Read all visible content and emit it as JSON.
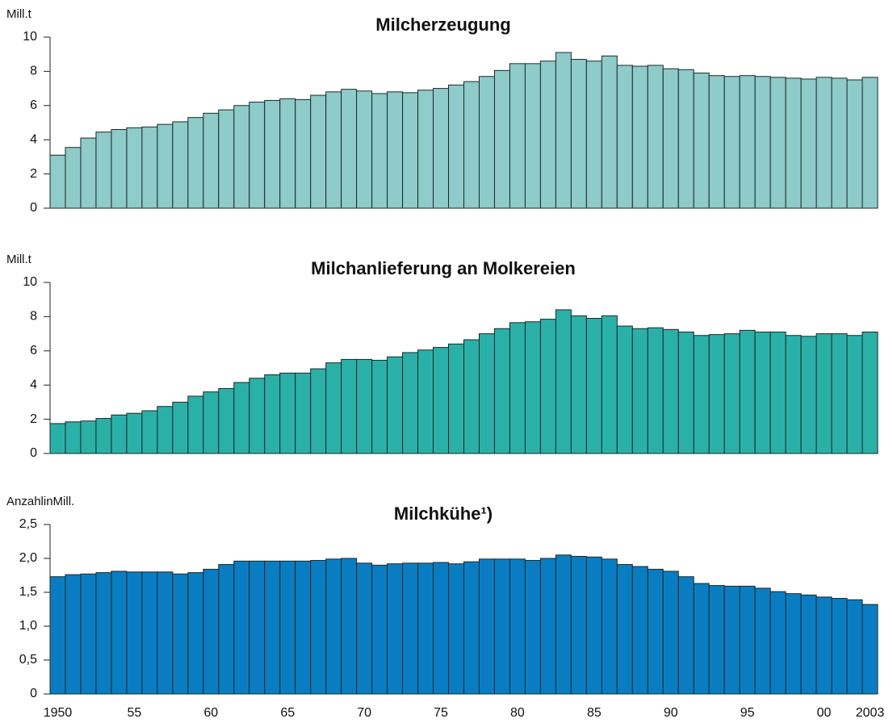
{
  "chart_data": [
    {
      "type": "bar",
      "title": "Milcherzeugung",
      "y_label": "Mill.t",
      "color": "#8ecbc9",
      "ylim": [
        0,
        10
      ],
      "yticks": [
        0,
        2,
        4,
        6,
        8,
        10
      ],
      "values": [
        3.1,
        3.55,
        4.1,
        4.45,
        4.6,
        4.7,
        4.75,
        4.9,
        5.05,
        5.3,
        5.55,
        5.75,
        6.0,
        6.2,
        6.3,
        6.4,
        6.35,
        6.6,
        6.8,
        6.95,
        6.85,
        6.7,
        6.8,
        6.75,
        6.9,
        7.0,
        7.2,
        7.4,
        7.7,
        8.05,
        8.45,
        8.45,
        8.6,
        9.1,
        8.7,
        8.6,
        8.9,
        8.35,
        8.3,
        8.35,
        8.15,
        8.1,
        7.9,
        7.75,
        7.7,
        7.75,
        7.7,
        7.65,
        7.6,
        7.55,
        7.65,
        7.6,
        7.5,
        7.65
      ]
    },
    {
      "type": "bar",
      "title": "Milchanlieferung an Molkereien",
      "y_label": "Mill.t",
      "color": "#2bb0a8",
      "ylim": [
        0,
        10
      ],
      "yticks": [
        0,
        2,
        4,
        6,
        8,
        10
      ],
      "values": [
        1.75,
        1.85,
        1.9,
        2.05,
        2.25,
        2.35,
        2.5,
        2.75,
        3.0,
        3.35,
        3.6,
        3.8,
        4.15,
        4.4,
        4.6,
        4.7,
        4.7,
        4.95,
        5.3,
        5.5,
        5.5,
        5.45,
        5.65,
        5.9,
        6.05,
        6.2,
        6.4,
        6.65,
        7.0,
        7.3,
        7.65,
        7.7,
        7.85,
        8.4,
        8.05,
        7.9,
        8.05,
        7.45,
        7.3,
        7.35,
        7.25,
        7.1,
        6.9,
        6.95,
        7.0,
        7.2,
        7.1,
        7.1,
        6.9,
        6.85,
        7.0,
        7.0,
        6.9,
        7.1
      ]
    },
    {
      "type": "bar",
      "title": "Milchkühe¹)",
      "y_label": "AnzahlinMill.",
      "color": "#0a7dc2",
      "ylim": [
        0,
        2.5
      ],
      "yticks": [
        0,
        {
          "value": 0.5,
          "label": "0,5"
        },
        {
          "value": 1,
          "label": "1,0"
        },
        {
          "value": 1.5,
          "label": "1,5"
        },
        {
          "value": 2,
          "label": "2,0"
        },
        {
          "value": 2.5,
          "label": "2,5"
        }
      ],
      "categories": [
        "1950",
        null,
        null,
        null,
        null,
        "55",
        null,
        null,
        null,
        null,
        "60",
        null,
        null,
        null,
        null,
        "65",
        null,
        null,
        null,
        null,
        "70",
        null,
        null,
        null,
        null,
        "75",
        null,
        null,
        null,
        null,
        "80",
        null,
        null,
        null,
        null,
        "85",
        null,
        null,
        null,
        null,
        "90",
        null,
        null,
        null,
        null,
        "95",
        null,
        null,
        null,
        null,
        "00",
        null,
        null,
        "2003"
      ],
      "values": [
        1.73,
        1.76,
        1.77,
        1.79,
        1.81,
        1.8,
        1.8,
        1.8,
        1.77,
        1.79,
        1.84,
        1.91,
        1.96,
        1.96,
        1.96,
        1.96,
        1.96,
        1.97,
        1.99,
        2.0,
        1.93,
        1.9,
        1.92,
        1.93,
        1.93,
        1.94,
        1.92,
        1.95,
        1.99,
        1.99,
        1.99,
        1.97,
        2.0,
        2.05,
        2.03,
        2.02,
        1.99,
        1.91,
        1.88,
        1.84,
        1.81,
        1.73,
        1.63,
        1.6,
        1.59,
        1.59,
        1.56,
        1.51,
        1.48,
        1.46,
        1.43,
        1.41,
        1.39,
        1.32
      ]
    }
  ]
}
